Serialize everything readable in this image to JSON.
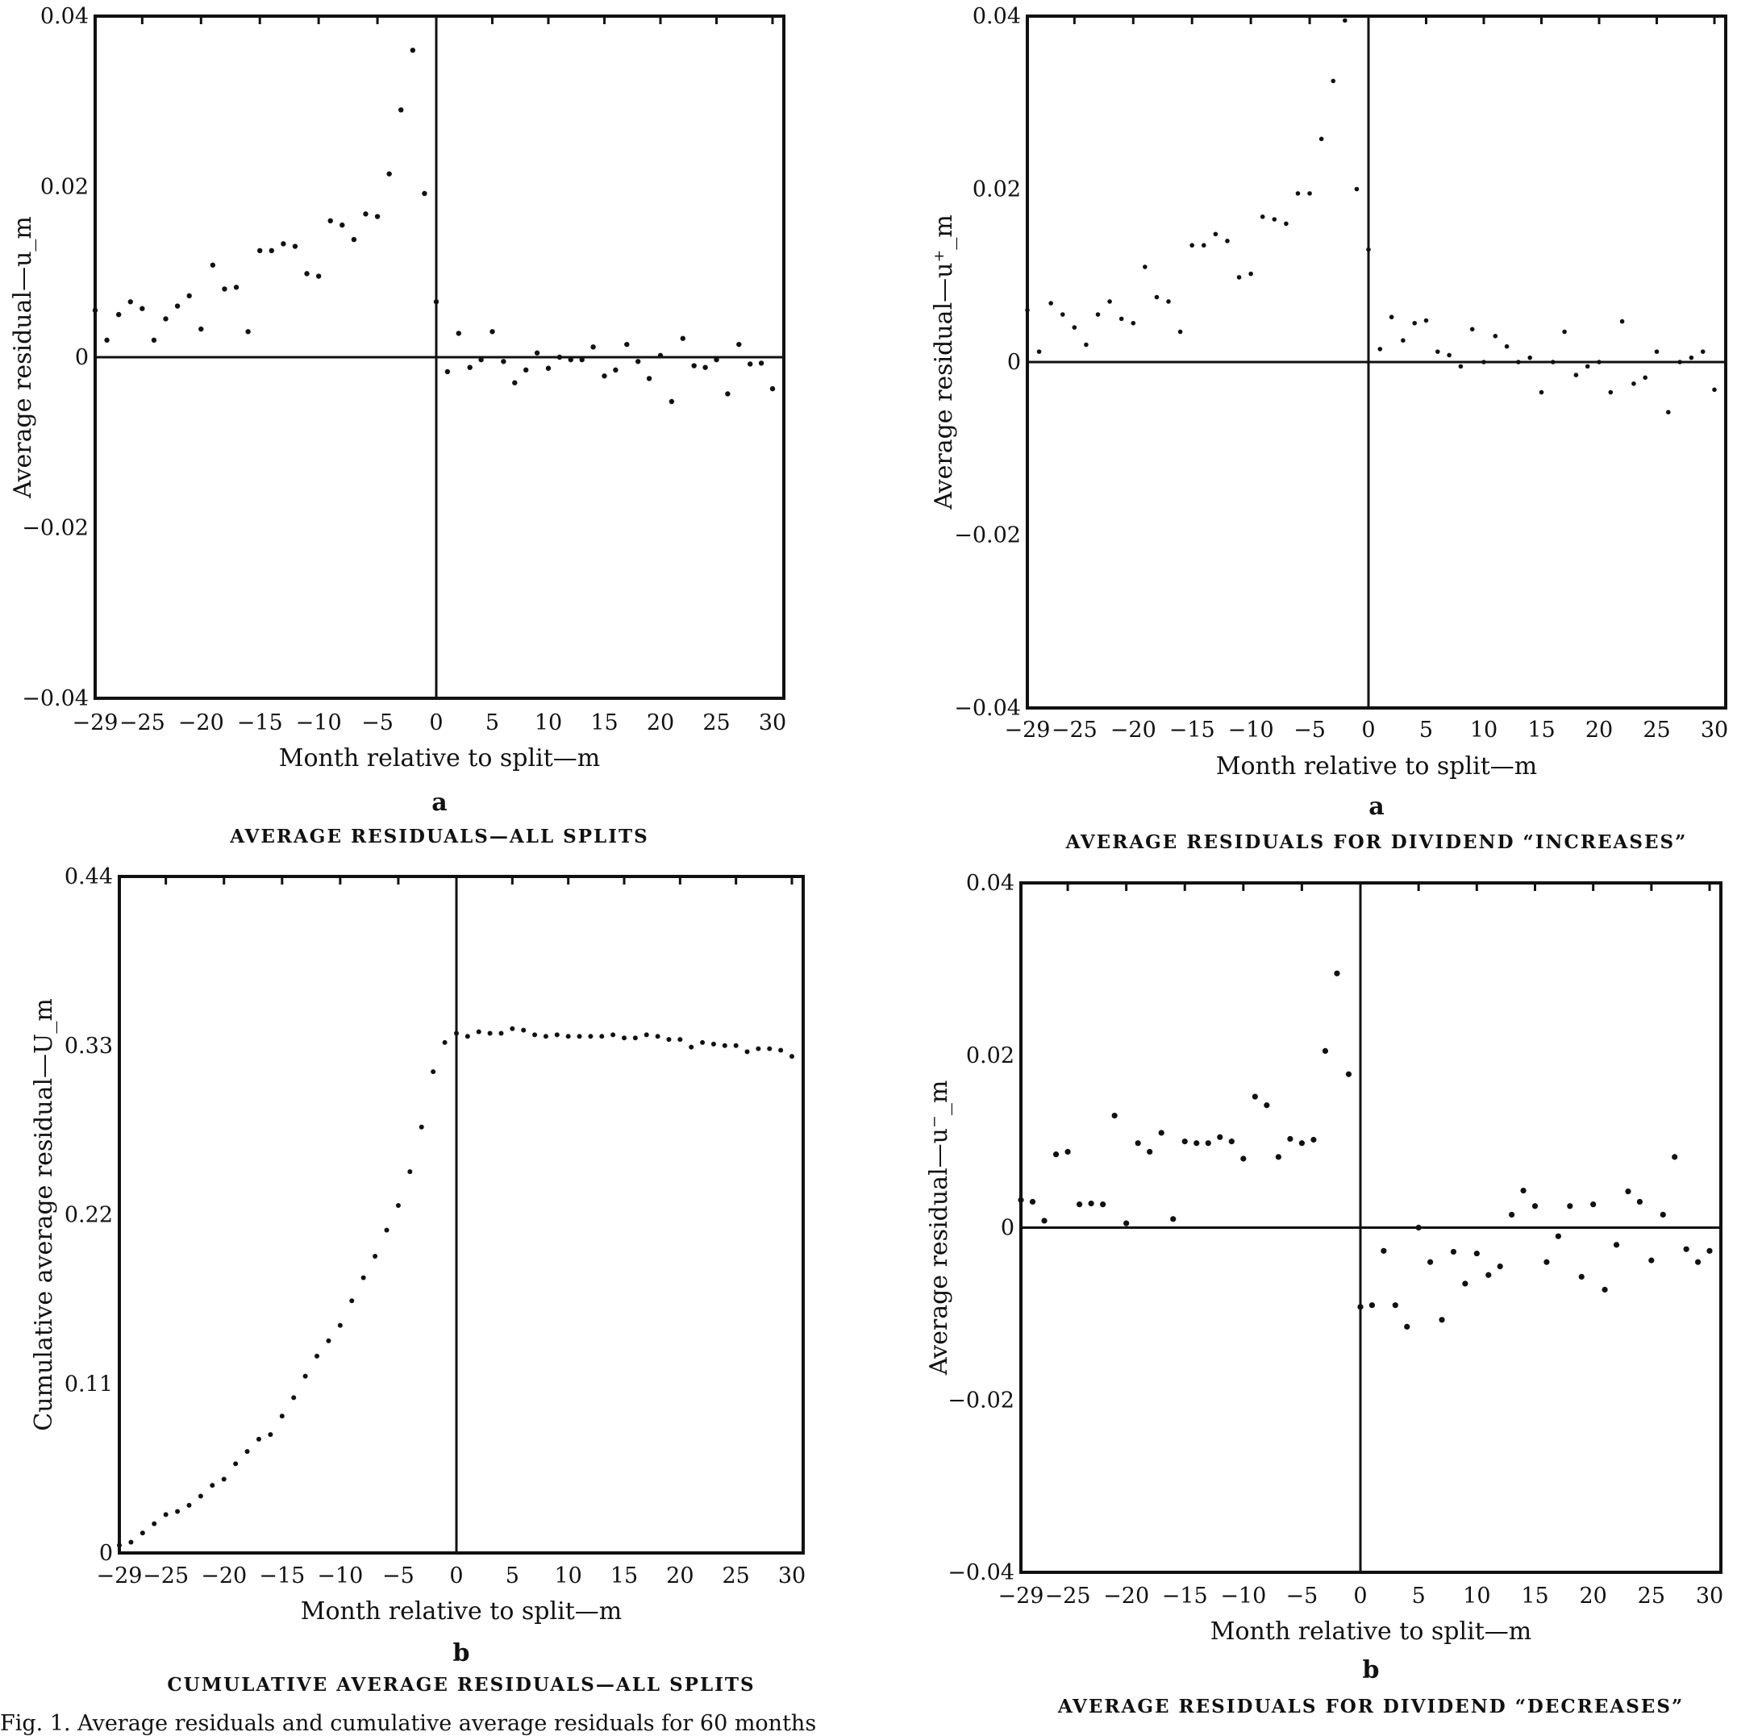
{
  "figure_caption": "Fig. 1. Average residuals and cumulative average residuals for 60 months",
  "xticks": [
    "−29",
    "−25",
    "−20",
    "−15",
    "−10",
    "−5",
    "0",
    "5",
    "10",
    "15",
    "20",
    "25",
    "30"
  ],
  "chart_data": [
    {
      "type": "scatter",
      "panel_label": "a",
      "title": "AVERAGE RESIDUALS—ALL SPLITS",
      "xlabel": "Month relative to split—m",
      "ylabel": "Average residual—u_m",
      "xlim": [
        -29,
        30
      ],
      "ylim": [
        -0.04,
        0.04
      ],
      "yticks": [
        "0.04",
        "0.02",
        "0",
        "−0.02",
        "−0.04"
      ],
      "ytick_values": [
        0.04,
        0.02,
        0,
        -0.02,
        -0.04
      ],
      "zero_line": true,
      "x": [
        -29,
        -28,
        -27,
        -26,
        -25,
        -24,
        -23,
        -22,
        -21,
        -20,
        -19,
        -18,
        -17,
        -16,
        -15,
        -14,
        -13,
        -12,
        -11,
        -10,
        -9,
        -8,
        -7,
        -6,
        -5,
        -4,
        -3,
        -2,
        -1,
        0,
        1,
        2,
        3,
        4,
        5,
        6,
        7,
        8,
        9,
        10,
        11,
        12,
        13,
        14,
        15,
        16,
        17,
        18,
        19,
        20,
        21,
        22,
        23,
        24,
        25,
        26,
        27,
        28,
        29,
        30
      ],
      "y": [
        0.0055,
        0.002,
        0.005,
        0.0065,
        0.0057,
        0.002,
        0.0045,
        0.006,
        0.0072,
        0.0033,
        0.0108,
        0.008,
        0.0082,
        0.003,
        0.0125,
        0.0125,
        0.0133,
        0.013,
        0.0098,
        0.0095,
        0.016,
        0.0155,
        0.0138,
        0.0168,
        0.0165,
        0.0215,
        0.029,
        0.036,
        0.0192,
        0.0065,
        -0.0017,
        0.0028,
        -0.0012,
        -0.0003,
        0.003,
        -0.0005,
        -0.003,
        -0.0015,
        0.0005,
        -0.0013,
        0.0,
        -0.0003,
        -0.0003,
        0.0012,
        -0.0022,
        -0.0015,
        0.0015,
        -0.0005,
        -0.0025,
        0.0002,
        -0.0052,
        0.0022,
        -0.001,
        -0.0012,
        -0.0003,
        -0.0043,
        0.0015,
        -0.0008,
        -0.0007,
        -0.0037
      ]
    },
    {
      "type": "scatter",
      "panel_label": "b",
      "title": "CUMULATIVE AVERAGE RESIDUALS—ALL SPLITS",
      "xlabel": "Month relative to split—m",
      "ylabel": "Cumulative average residual—U_m",
      "xlim": [
        -29,
        30
      ],
      "ylim": [
        0,
        0.44
      ],
      "yticks": [
        "0.44",
        "0.33",
        "0.22",
        "0.11",
        "0"
      ],
      "ytick_values": [
        0.44,
        0.33,
        0.22,
        0.11,
        0
      ],
      "zero_line": false,
      "x": [
        -29,
        -28,
        -27,
        -26,
        -25,
        -24,
        -23,
        -22,
        -21,
        -20,
        -19,
        -18,
        -17,
        -16,
        -15,
        -14,
        -13,
        -12,
        -11,
        -10,
        -9,
        -8,
        -7,
        -6,
        -5,
        -4,
        -3,
        -2,
        -1,
        0,
        1,
        2,
        3,
        4,
        5,
        6,
        7,
        8,
        9,
        10,
        11,
        12,
        13,
        14,
        15,
        16,
        17,
        18,
        19,
        20,
        21,
        22,
        23,
        24,
        25,
        26,
        27,
        28,
        29,
        30
      ],
      "y": [
        0.005,
        0.007,
        0.013,
        0.019,
        0.025,
        0.027,
        0.031,
        0.037,
        0.044,
        0.048,
        0.058,
        0.066,
        0.074,
        0.077,
        0.089,
        0.101,
        0.115,
        0.128,
        0.138,
        0.148,
        0.164,
        0.179,
        0.193,
        0.21,
        0.226,
        0.248,
        0.277,
        0.313,
        0.332,
        0.338,
        0.336,
        0.339,
        0.338,
        0.338,
        0.341,
        0.34,
        0.337,
        0.336,
        0.337,
        0.336,
        0.336,
        0.336,
        0.336,
        0.337,
        0.335,
        0.335,
        0.337,
        0.336,
        0.334,
        0.334,
        0.329,
        0.332,
        0.331,
        0.33,
        0.33,
        0.326,
        0.328,
        0.328,
        0.327,
        0.323
      ]
    },
    {
      "type": "scatter",
      "panel_label": "a",
      "title": "AVERAGE RESIDUALS FOR DIVIDEND “INCREASES”",
      "xlabel": "Month relative to split—m",
      "ylabel": "Average residual—u⁺_m",
      "xlim": [
        -29,
        30
      ],
      "ylim": [
        -0.04,
        0.04
      ],
      "yticks": [
        "0.04",
        "0.02",
        "0",
        "−0.02",
        "−0.04"
      ],
      "ytick_values": [
        0.04,
        0.02,
        0,
        -0.02,
        -0.04
      ],
      "zero_line": true,
      "x": [
        -29,
        -28,
        -27,
        -26,
        -25,
        -24,
        -23,
        -22,
        -21,
        -20,
        -19,
        -18,
        -17,
        -16,
        -15,
        -14,
        -13,
        -12,
        -11,
        -10,
        -9,
        -8,
        -7,
        -6,
        -5,
        -4,
        -3,
        -2,
        -1,
        0,
        1,
        2,
        3,
        4,
        5,
        6,
        7,
        8,
        9,
        10,
        11,
        12,
        13,
        14,
        15,
        16,
        17,
        18,
        19,
        20,
        21,
        22,
        23,
        24,
        25,
        26,
        27,
        28,
        29,
        30
      ],
      "y": [
        0.006,
        0.0012,
        0.0068,
        0.0055,
        0.004,
        0.002,
        0.0055,
        0.007,
        0.005,
        0.0045,
        0.011,
        0.0075,
        0.007,
        0.0035,
        0.0135,
        0.0135,
        0.0148,
        0.014,
        0.0098,
        0.0102,
        0.0168,
        0.0165,
        0.016,
        0.0195,
        0.0195,
        0.0258,
        0.0325,
        0.0395,
        0.02,
        0.013,
        0.0015,
        0.0052,
        0.0025,
        0.0045,
        0.0048,
        0.0012,
        0.0008,
        -0.0005,
        0.0038,
        0.0,
        0.003,
        0.0018,
        0.0,
        0.0005,
        -0.0035,
        0.0,
        0.0035,
        -0.0015,
        -0.0005,
        0.0,
        -0.0035,
        0.0047,
        -0.0025,
        -0.0018,
        0.0012,
        -0.0058,
        0.0,
        0.0005,
        0.0012,
        -0.0032
      ]
    },
    {
      "type": "scatter",
      "panel_label": "b",
      "title": "AVERAGE RESIDUALS FOR DIVIDEND “DECREASES”",
      "xlabel": "Month relative to split—m",
      "ylabel": "Average residual—u⁻_m",
      "xlim": [
        -29,
        30
      ],
      "ylim": [
        -0.04,
        0.04
      ],
      "yticks": [
        "0.04",
        "0.02",
        "0",
        "−0.02",
        "−0.04"
      ],
      "ytick_values": [
        0.04,
        0.02,
        0,
        -0.02,
        -0.04
      ],
      "zero_line": true,
      "x": [
        -29,
        -28,
        -27,
        -26,
        -25,
        -24,
        -23,
        -22,
        -21,
        -20,
        -19,
        -18,
        -17,
        -16,
        -15,
        -14,
        -13,
        -12,
        -11,
        -10,
        -9,
        -8,
        -7,
        -6,
        -5,
        -4,
        -3,
        -2,
        -1,
        0,
        1,
        2,
        3,
        4,
        5,
        6,
        7,
        8,
        9,
        10,
        11,
        12,
        13,
        14,
        15,
        16,
        17,
        18,
        19,
        20,
        21,
        22,
        23,
        24,
        25,
        26,
        27,
        28,
        29,
        30
      ],
      "y": [
        0.0032,
        0.003,
        0.0008,
        0.0085,
        0.0088,
        0.0027,
        0.0028,
        0.0027,
        0.013,
        0.0005,
        0.0098,
        0.0088,
        0.011,
        0.001,
        0.01,
        0.0098,
        0.0098,
        0.0105,
        0.01,
        0.008,
        0.0152,
        0.0142,
        0.0082,
        0.0103,
        0.0098,
        0.0102,
        0.0205,
        0.0295,
        0.0178,
        -0.0092,
        -0.009,
        -0.0027,
        -0.009,
        -0.0115,
        0.0,
        -0.004,
        -0.0107,
        -0.0028,
        -0.0065,
        -0.003,
        -0.0055,
        -0.0045,
        0.0015,
        0.0043,
        0.0025,
        -0.004,
        -0.001,
        0.0025,
        -0.0057,
        0.0027,
        -0.0072,
        -0.002,
        0.0042,
        0.003,
        -0.0038,
        0.0015,
        0.0082,
        -0.0025,
        -0.004,
        -0.0027
      ]
    }
  ]
}
